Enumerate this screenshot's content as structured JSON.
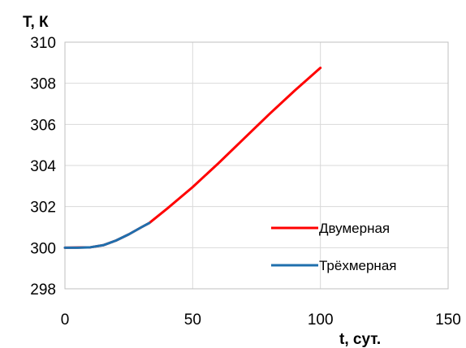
{
  "chart_data": {
    "type": "line",
    "title": "",
    "xlabel": "t, сут.",
    "ylabel": "T, К",
    "xlim": [
      0,
      150
    ],
    "ylim": [
      298,
      310
    ],
    "xticks": [
      0,
      50,
      100,
      150
    ],
    "yticks": [
      298,
      300,
      302,
      304,
      306,
      308,
      310
    ],
    "xtick_labels": [
      "0",
      "50",
      "100",
      "150"
    ],
    "ytick_labels": [
      "298",
      "300",
      "302",
      "304",
      "306",
      "308",
      "310"
    ],
    "grid": true,
    "legend_position": "right, inside plot",
    "series": [
      {
        "name": "Двумерная",
        "color": "#ff0000",
        "x": [
          0,
          10,
          15,
          20,
          25,
          30,
          33,
          40,
          50,
          60,
          70,
          80,
          90,
          100
        ],
        "y": [
          300,
          300.02,
          300.12,
          300.35,
          300.65,
          301.0,
          301.2,
          301.9,
          302.95,
          304.1,
          305.3,
          306.5,
          307.65,
          308.75
        ]
      },
      {
        "name": "Трёхмерная",
        "color": "#1f6fad",
        "x": [
          0,
          5,
          10,
          15,
          20,
          25,
          30,
          33
        ],
        "y": [
          300,
          300,
          300.02,
          300.12,
          300.35,
          300.65,
          301.0,
          301.2
        ]
      }
    ]
  }
}
